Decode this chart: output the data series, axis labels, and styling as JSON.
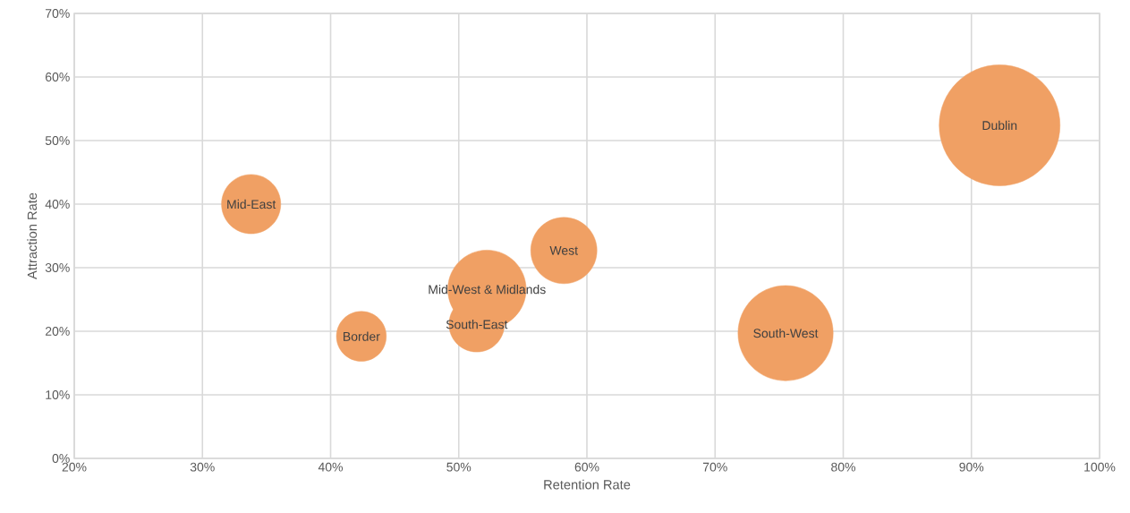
{
  "chart_data": {
    "type": "bubble",
    "xlabel": "Retention Rate",
    "ylabel": "Attraction Rate",
    "x": [
      33.8,
      42.4,
      51.4,
      52.2,
      58.2,
      75.5,
      92.2
    ],
    "values": [
      40.0,
      19.2,
      21.1,
      26.6,
      32.7,
      19.7,
      52.4
    ],
    "sizes": [
      0.24,
      0.17,
      0.21,
      0.42,
      0.3,
      0.62,
      1
    ],
    "color": "#f0a064",
    "annotations": [
      {
        "text": "Mid-East",
        "x": 33.8,
        "y": 40.0
      },
      {
        "text": "Border",
        "x": 42.4,
        "y": 19.2
      },
      {
        "text": "South-East",
        "x": 51.4,
        "y": 21.1
      },
      {
        "text": "Mid-West & Midlands",
        "x": 52.2,
        "y": 26.6
      },
      {
        "text": "West",
        "x": 58.2,
        "y": 32.7
      },
      {
        "text": "South-West",
        "x": 75.5,
        "y": 19.7
      },
      {
        "text": "Dublin",
        "x": 92.2,
        "y": 52.4
      }
    ],
    "xlim": [
      20,
      100
    ],
    "ylim": [
      0,
      70
    ],
    "xticks": [
      {
        "value": 20,
        "label": "20%"
      },
      {
        "value": 30,
        "label": "30%"
      },
      {
        "value": 40,
        "label": "40%"
      },
      {
        "value": 50,
        "label": "50%"
      },
      {
        "value": 60,
        "label": "60%"
      },
      {
        "value": 70,
        "label": "70%"
      },
      {
        "value": 80,
        "label": "80%"
      },
      {
        "value": 90,
        "label": "90%"
      },
      {
        "value": 100,
        "label": "100%"
      }
    ],
    "yticks": [
      {
        "value": 0,
        "label": "0%"
      },
      {
        "value": 10,
        "label": "10%"
      },
      {
        "value": 20,
        "label": "20%"
      },
      {
        "value": 30,
        "label": "30%"
      },
      {
        "value": 40,
        "label": "40%"
      },
      {
        "value": 50,
        "label": "50%"
      },
      {
        "value": 60,
        "label": "60%"
      },
      {
        "value": 70,
        "label": "70%"
      }
    ],
    "grid": true
  }
}
